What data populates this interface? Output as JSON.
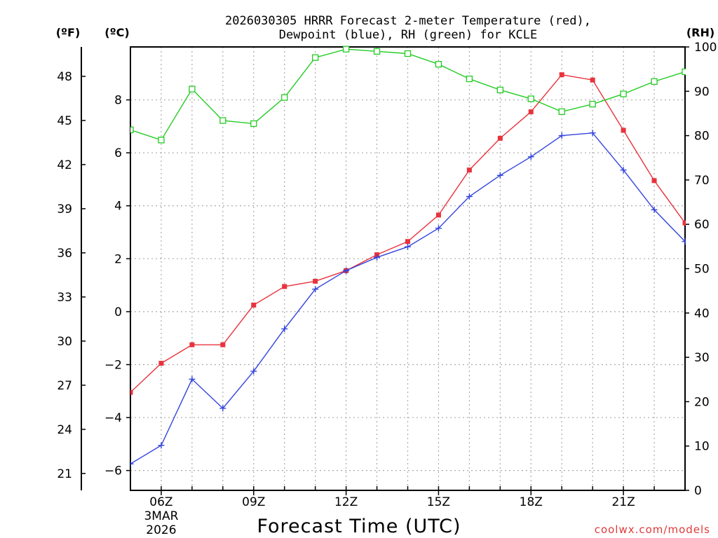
{
  "chart_data": {
    "type": "line",
    "title_line1": "2026030305 HRRR Forecast 2-meter Temperature (red),",
    "title_line2": "Dewpoint (blue), RH (green) for KCLE",
    "xlabel": "Forecast Time (UTC)",
    "left_outer_axis_label": "(ºF)",
    "left_inner_axis_label": "(ºC)",
    "right_axis_label": "(RH)",
    "credit": "coolwx.com/models",
    "x": [
      5,
      6,
      7,
      8,
      9,
      10,
      11,
      12,
      13,
      14,
      15,
      16,
      17,
      18,
      19,
      20,
      21,
      22,
      23
    ],
    "xlim": [
      5,
      23
    ],
    "x_ticks": [
      {
        "value": 6,
        "label": "06Z",
        "label2": "3MAR",
        "label3": "2026"
      },
      {
        "value": 9,
        "label": "09Z",
        "label2": "",
        "label3": ""
      },
      {
        "value": 12,
        "label": "12Z",
        "label2": "",
        "label3": ""
      },
      {
        "value": 15,
        "label": "15Z",
        "label2": "",
        "label3": ""
      },
      {
        "value": 18,
        "label": "18Z",
        "label2": "",
        "label3": ""
      },
      {
        "value": 21,
        "label": "21Z",
        "label2": "",
        "label3": ""
      }
    ],
    "c_ylim": [
      -6.75,
      10
    ],
    "c_ticks": [
      {
        "v": -6,
        "t": "−6"
      },
      {
        "v": -4,
        "t": "−4"
      },
      {
        "v": -2,
        "t": "−2"
      },
      {
        "v": 0,
        "t": "0"
      },
      {
        "v": 2,
        "t": "2"
      },
      {
        "v": 4,
        "t": "4"
      },
      {
        "v": 6,
        "t": "6"
      },
      {
        "v": 8,
        "t": "8"
      }
    ],
    "f_ticks": [
      21,
      24,
      27,
      30,
      33,
      36,
      39,
      42,
      45,
      48
    ],
    "rh_ylim": [
      0,
      100
    ],
    "rh_ticks": [
      0,
      10,
      20,
      30,
      40,
      50,
      60,
      70,
      80,
      90,
      100
    ],
    "series": [
      {
        "name": "Temperature (°C)",
        "color": "#e8333d",
        "axis": "c",
        "marker": "square-filled",
        "values": [
          -3.05,
          -1.95,
          -1.25,
          -1.25,
          0.25,
          0.95,
          1.15,
          1.55,
          2.15,
          2.65,
          3.65,
          5.35,
          6.55,
          7.55,
          8.95,
          8.75,
          6.85,
          4.95,
          3.35
        ]
      },
      {
        "name": "Dewpoint (°C)",
        "color": "#3344dd",
        "axis": "c",
        "marker": "plus",
        "values": [
          -5.75,
          -5.05,
          -2.55,
          -3.65,
          -2.25,
          -0.65,
          0.85,
          1.55,
          2.05,
          2.45,
          3.15,
          4.35,
          5.15,
          5.85,
          6.65,
          6.75,
          5.35,
          3.85,
          2.65
        ]
      },
      {
        "name": "RH (%)",
        "color": "#22cc22",
        "axis": "rh",
        "marker": "square-open",
        "values": [
          81.3,
          79.0,
          90.5,
          83.4,
          82.7,
          88.6,
          97.6,
          99.5,
          99.0,
          98.5,
          96.1,
          92.8,
          90.3,
          88.3,
          85.4,
          87.1,
          89.4,
          92.2,
          94.4
        ]
      }
    ]
  }
}
